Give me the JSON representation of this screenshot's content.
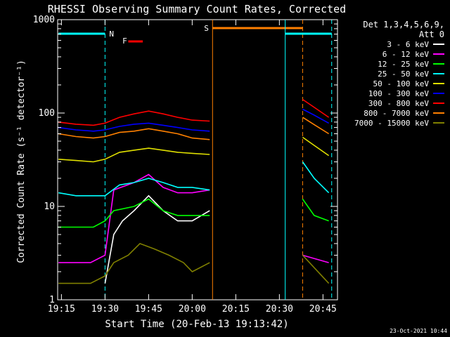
{
  "chart_data": {
    "type": "line",
    "title": "RHESSI Observing Summary Count Rates, Corrected",
    "xlabel": "Start Time (20-Feb-13 19:13:42)",
    "ylabel": "Corrected Count Rate (s⁻¹ detector⁻¹)",
    "yscale": "log",
    "ylim": [
      1,
      1000
    ],
    "xlim_minutes": [
      "19:13:42",
      "20:50:00"
    ],
    "x_ticks": [
      "19:15",
      "19:30",
      "19:45",
      "20:00",
      "20:15",
      "20:30",
      "20:45"
    ],
    "y_ticks": [
      "1",
      "10",
      "100",
      "1000"
    ],
    "detectors_label": "Det 1,3,4,5,6,9,",
    "attenuator_label": "Att 0",
    "annotations": {
      "night": "N",
      "flare": "F",
      "saa": "S"
    },
    "footer_date": "23-Oct-2021 10:44",
    "gaps": [
      [
        "20:07",
        "20:38"
      ]
    ],
    "series": [
      {
        "name": "3 - 6 keV",
        "color": "#ffffff",
        "points": [
          [
            "19:30",
            1.5
          ],
          [
            "19:33",
            5
          ],
          [
            "19:36",
            7
          ],
          [
            "19:40",
            9
          ],
          [
            "19:45",
            13
          ],
          [
            "19:50",
            9
          ],
          [
            "19:55",
            7
          ],
          [
            "20:00",
            7
          ],
          [
            "20:06",
            9
          ]
        ]
      },
      {
        "name": "6 - 12 keV",
        "color": "#ff00ff",
        "points": [
          [
            "19:14",
            2.5
          ],
          [
            "19:25",
            2.5
          ],
          [
            "19:30",
            3
          ],
          [
            "19:33",
            15
          ],
          [
            "19:40",
            18
          ],
          [
            "19:45",
            22
          ],
          [
            "19:50",
            16
          ],
          [
            "19:55",
            14
          ],
          [
            "20:00",
            14
          ],
          [
            "20:06",
            15
          ],
          [
            "20:38",
            3
          ],
          [
            "20:47",
            2.5
          ]
        ]
      },
      {
        "name": "12 - 25 keV",
        "color": "#00ff00",
        "points": [
          [
            "19:14",
            6
          ],
          [
            "19:20",
            6
          ],
          [
            "19:26",
            6
          ],
          [
            "19:30",
            7
          ],
          [
            "19:33",
            9
          ],
          [
            "19:40",
            10
          ],
          [
            "19:45",
            12
          ],
          [
            "19:50",
            9
          ],
          [
            "19:55",
            8
          ],
          [
            "20:00",
            8
          ],
          [
            "20:06",
            8
          ],
          [
            "20:38",
            12
          ],
          [
            "20:42",
            8
          ],
          [
            "20:47",
            7
          ]
        ]
      },
      {
        "name": "25 - 50 keV",
        "color": "#00ffff",
        "points": [
          [
            "19:14",
            14
          ],
          [
            "19:20",
            13
          ],
          [
            "19:26",
            13
          ],
          [
            "19:30",
            13
          ],
          [
            "19:35",
            17
          ],
          [
            "19:40",
            18
          ],
          [
            "19:45",
            20
          ],
          [
            "19:50",
            18
          ],
          [
            "19:55",
            16
          ],
          [
            "20:00",
            16
          ],
          [
            "20:06",
            15
          ],
          [
            "20:38",
            30
          ],
          [
            "20:42",
            20
          ],
          [
            "20:47",
            14
          ]
        ]
      },
      {
        "name": "50 - 100 keV",
        "color": "#e0e000",
        "points": [
          [
            "19:14",
            32
          ],
          [
            "19:20",
            31
          ],
          [
            "19:26",
            30
          ],
          [
            "19:30",
            32
          ],
          [
            "19:35",
            38
          ],
          [
            "19:40",
            40
          ],
          [
            "19:45",
            42
          ],
          [
            "19:50",
            40
          ],
          [
            "19:55",
            38
          ],
          [
            "20:00",
            37
          ],
          [
            "20:06",
            36
          ],
          [
            "20:38",
            55
          ],
          [
            "20:42",
            45
          ],
          [
            "20:47",
            35
          ]
        ]
      },
      {
        "name": "100 - 300 keV",
        "color": "#0000ff",
        "points": [
          [
            "19:14",
            70
          ],
          [
            "19:20",
            66
          ],
          [
            "19:26",
            64
          ],
          [
            "19:30",
            66
          ],
          [
            "19:35",
            72
          ],
          [
            "19:40",
            76
          ],
          [
            "19:45",
            78
          ],
          [
            "19:50",
            74
          ],
          [
            "19:55",
            70
          ],
          [
            "20:00",
            66
          ],
          [
            "20:06",
            64
          ],
          [
            "20:38",
            110
          ],
          [
            "20:42",
            95
          ],
          [
            "20:47",
            78
          ]
        ]
      },
      {
        "name": "300 - 800 keV",
        "color": "#ff0000",
        "points": [
          [
            "19:14",
            80
          ],
          [
            "19:20",
            76
          ],
          [
            "19:26",
            74
          ],
          [
            "19:30",
            78
          ],
          [
            "19:35",
            90
          ],
          [
            "19:40",
            98
          ],
          [
            "19:45",
            105
          ],
          [
            "19:50",
            98
          ],
          [
            "19:55",
            90
          ],
          [
            "20:00",
            84
          ],
          [
            "20:06",
            82
          ],
          [
            "20:38",
            140
          ],
          [
            "20:42",
            115
          ],
          [
            "20:47",
            90
          ]
        ]
      },
      {
        "name": "800 - 7000 keV",
        "color": "#ff8000",
        "points": [
          [
            "19:14",
            60
          ],
          [
            "19:20",
            56
          ],
          [
            "19:26",
            54
          ],
          [
            "19:30",
            56
          ],
          [
            "19:35",
            62
          ],
          [
            "19:40",
            64
          ],
          [
            "19:45",
            68
          ],
          [
            "19:50",
            64
          ],
          [
            "19:55",
            60
          ],
          [
            "20:00",
            54
          ],
          [
            "20:06",
            52
          ],
          [
            "20:38",
            90
          ],
          [
            "20:42",
            75
          ],
          [
            "20:47",
            60
          ]
        ]
      },
      {
        "name": "7000 - 15000 keV",
        "color": "#808000",
        "points": [
          [
            "19:14",
            1.5
          ],
          [
            "19:25",
            1.5
          ],
          [
            "19:30",
            1.8
          ],
          [
            "19:33",
            2.5
          ],
          [
            "19:38",
            3
          ],
          [
            "19:42",
            4
          ],
          [
            "19:47",
            3.5
          ],
          [
            "19:52",
            3
          ],
          [
            "19:57",
            2.5
          ],
          [
            "20:00",
            2
          ],
          [
            "20:06",
            2.5
          ],
          [
            "20:38",
            3
          ],
          [
            "20:47",
            1.5
          ]
        ]
      }
    ]
  }
}
